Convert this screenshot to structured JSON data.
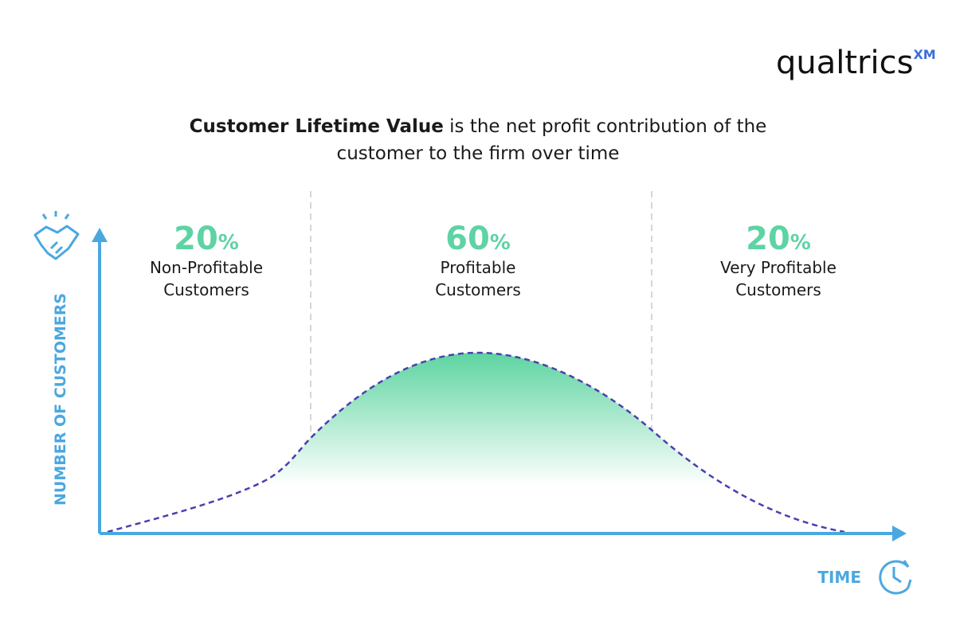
{
  "logo": {
    "name": "qualtrics",
    "mark": "XM"
  },
  "header": {
    "title_bold": "Customer Lifetime Value",
    "title_rest": "is the net profit contribution of the",
    "title_line2": "customer to the firm over time"
  },
  "axes": {
    "y_label": "NUMBER OF CUSTOMERS",
    "x_label": "TIME"
  },
  "segments": [
    {
      "value": "20",
      "unit": "%",
      "label_lines": [
        "Non-Profitable",
        "Customers"
      ]
    },
    {
      "value": "60",
      "unit": "%",
      "label_lines": [
        "Profitable",
        "Customers"
      ]
    },
    {
      "value": "20",
      "unit": "%",
      "label_lines": [
        "Very Profitable",
        "Customers"
      ]
    }
  ]
}
